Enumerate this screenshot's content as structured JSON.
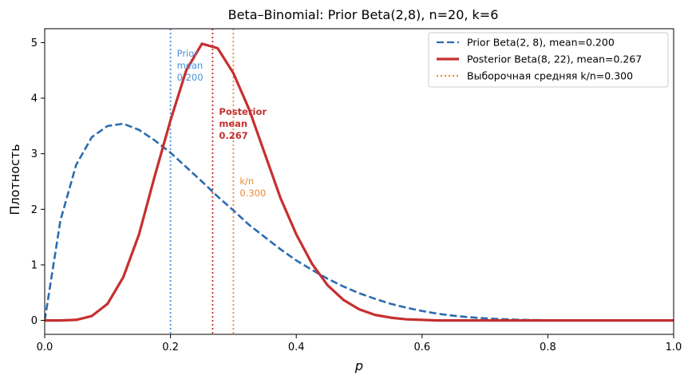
{
  "chart_data": {
    "type": "line",
    "title": "Beta–Binomial: Prior Beta(2,8), n=20, k=6",
    "xlabel": "p",
    "ylabel": "Плотность",
    "xlim": [
      0,
      1
    ],
    "ylim": [
      -0.25,
      5.25
    ],
    "xticks": [
      0,
      0.2,
      0.4,
      0.6,
      0.8,
      1.0
    ],
    "xtick_labels": [
      "0.0",
      "0.2",
      "0.4",
      "0.6",
      "0.8",
      "1.0"
    ],
    "yticks": [
      0,
      1,
      2,
      3,
      4,
      5
    ],
    "ytick_labels": [
      "0",
      "1",
      "2",
      "3",
      "4",
      "5"
    ],
    "grid": false,
    "legend_position": "top-right",
    "series": [
      {
        "name": "Prior Beta(2, 8), mean=0.200",
        "color": "#2b6cb0",
        "style": "dashed",
        "x": [
          0.0,
          0.025,
          0.05,
          0.075,
          0.1,
          0.125,
          0.15,
          0.175,
          0.2,
          0.225,
          0.25,
          0.275,
          0.3,
          0.325,
          0.35,
          0.375,
          0.4,
          0.425,
          0.45,
          0.475,
          0.5,
          0.525,
          0.55,
          0.575,
          0.6,
          0.625,
          0.65,
          0.675,
          0.7,
          0.725,
          0.75,
          0.775,
          0.8,
          0.825,
          0.85,
          0.875,
          0.9,
          0.925,
          0.95,
          0.975,
          1.0
        ],
        "y": [
          0.0,
          1.8,
          2.8,
          3.3,
          3.5,
          3.54,
          3.43,
          3.24,
          3.02,
          2.76,
          2.5,
          2.23,
          1.98,
          1.72,
          1.5,
          1.28,
          1.08,
          0.91,
          0.75,
          0.61,
          0.49,
          0.39,
          0.3,
          0.23,
          0.17,
          0.12,
          0.085,
          0.058,
          0.038,
          0.024,
          0.014,
          0.008,
          0.004,
          0.002,
          0.001,
          0.0,
          0.0,
          0.0,
          0.0,
          0.0,
          0.0
        ]
      },
      {
        "name": "Posterior Beta(8, 22), mean=0.267",
        "color": "#c53030",
        "style": "solid",
        "x": [
          0.0,
          0.025,
          0.05,
          0.075,
          0.1,
          0.125,
          0.15,
          0.175,
          0.2,
          0.225,
          0.25,
          0.275,
          0.3,
          0.325,
          0.35,
          0.375,
          0.4,
          0.425,
          0.45,
          0.475,
          0.5,
          0.525,
          0.55,
          0.575,
          0.6,
          0.625,
          0.65,
          0.675,
          0.7,
          0.725,
          0.75,
          0.775,
          0.8,
          0.825,
          0.85,
          0.875,
          0.9,
          0.925,
          0.95,
          0.975,
          1.0
        ],
        "y": [
          0.0,
          0.0,
          0.01,
          0.08,
          0.3,
          0.78,
          1.55,
          2.6,
          3.6,
          4.5,
          4.98,
          4.9,
          4.45,
          3.8,
          3.0,
          2.2,
          1.55,
          1.02,
          0.63,
          0.37,
          0.2,
          0.1,
          0.05,
          0.02,
          0.01,
          0.0,
          0.0,
          0.0,
          0.0,
          0.0,
          0.0,
          0.0,
          0.0,
          0.0,
          0.0,
          0.0,
          0.0,
          0.0,
          0.0,
          0.0,
          0.0
        ]
      }
    ],
    "vlines": [
      {
        "key": "prior-mean",
        "x": 0.2,
        "color": "#4a90d9",
        "style": "dotted",
        "label": "Prior\nmean\n0.200",
        "label_y": 4.75,
        "bold": false
      },
      {
        "key": "posterior-mean",
        "x": 0.267,
        "color": "#c53030",
        "style": "dotted",
        "label": "Posterior\nmean\n0.267",
        "label_y": 3.7,
        "bold": true
      },
      {
        "key": "sample-mean",
        "x": 0.3,
        "color": "#ed8936",
        "style": "dotted",
        "label": "k/n\n0.300",
        "label_y": 2.45,
        "bold": false
      }
    ],
    "legend": [
      {
        "label": "Prior Beta(2, 8), mean=0.200",
        "color": "#2b6cb0",
        "style": "dashed"
      },
      {
        "label": "Posterior Beta(8, 22), mean=0.267",
        "color": "#c53030",
        "style": "solid"
      },
      {
        "label": "Выборочная средняя k/n=0.300",
        "color": "#ed8936",
        "style": "dotted"
      }
    ]
  }
}
